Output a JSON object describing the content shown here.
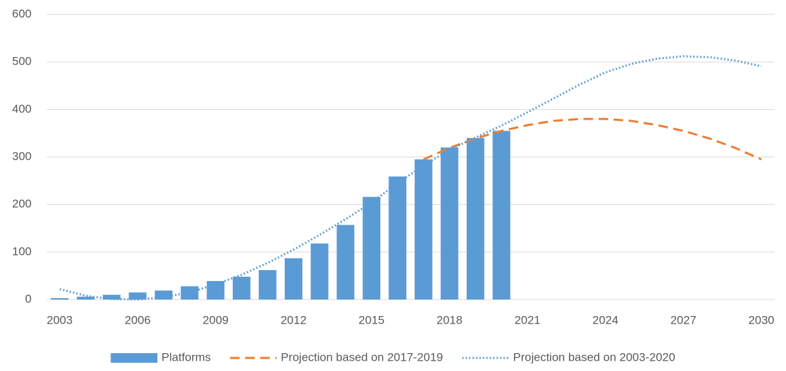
{
  "chart_data": {
    "type": "bar",
    "x": [
      2003,
      2004,
      2005,
      2006,
      2007,
      2008,
      2009,
      2010,
      2011,
      2012,
      2013,
      2014,
      2015,
      2016,
      2017,
      2018,
      2019,
      2020,
      2021,
      2022,
      2023,
      2024,
      2025,
      2026,
      2027,
      2028,
      2029,
      2030
    ],
    "xlim": [
      2002.5,
      2030.5
    ],
    "xticks": [
      2003,
      2006,
      2009,
      2012,
      2015,
      2018,
      2021,
      2024,
      2027,
      2030
    ],
    "ylim": [
      0,
      600
    ],
    "yticks": [
      0,
      100,
      200,
      300,
      400,
      500,
      600
    ],
    "grid": true,
    "legend": "bottom",
    "series": [
      {
        "name": "Platforms",
        "type": "bar",
        "color": "#5b9bd5",
        "values": [
          3,
          6,
          10,
          15,
          19,
          28,
          39,
          48,
          62,
          87,
          118,
          157,
          216,
          259,
          295,
          320,
          340,
          355,
          null,
          null,
          null,
          null,
          null,
          null,
          null,
          null,
          null,
          null
        ]
      },
      {
        "name": "Projection based on 2017-2019",
        "type": "line",
        "line_style": "dashed",
        "color": "#ed7d31",
        "values": [
          null,
          null,
          null,
          null,
          null,
          null,
          null,
          null,
          null,
          null,
          null,
          null,
          null,
          null,
          295,
          319,
          339,
          355,
          367,
          376,
          380,
          380,
          376,
          367,
          355,
          339,
          319,
          295
        ]
      },
      {
        "name": "Projection based on 2003-2020",
        "type": "line",
        "line_style": "dotted",
        "color": "#5b9bd5",
        "values": [
          22,
          8,
          1,
          0,
          5,
          15,
          32,
          52,
          77,
          105,
          136,
          169,
          204,
          245,
          282,
          315,
          341,
          366,
          394,
          423,
          452,
          478,
          496,
          507,
          512,
          510,
          503,
          491
        ]
      }
    ]
  }
}
